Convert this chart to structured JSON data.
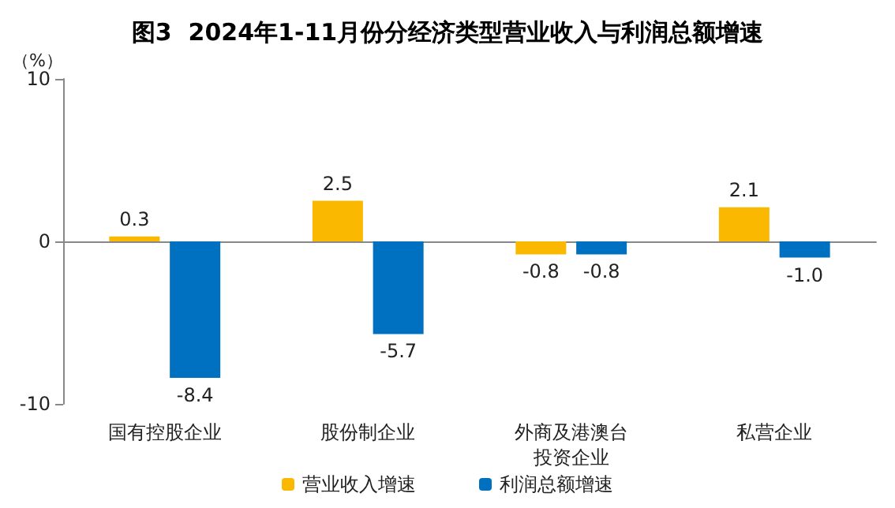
{
  "chart_data": {
    "type": "bar",
    "title": "图3  2024年1-11月份分经济类型营业收入与利润总额增速",
    "ylabel": "（%）",
    "categories": [
      "国有控股企业",
      "股份制企业",
      "外商及港澳台投资企业",
      "私营企业"
    ],
    "series": [
      {
        "name": "营业收入增速",
        "color": "#fbb800",
        "values": [
          0.3,
          2.5,
          -0.8,
          2.1
        ],
        "value_labels": [
          "0.3",
          "2.5",
          "-0.8",
          "2.1"
        ]
      },
      {
        "name": "利润总额增速",
        "color": "#0070c0",
        "values": [
          -8.4,
          -5.7,
          -0.8,
          -1.0
        ],
        "value_labels": [
          "-8.4",
          "-5.7",
          "-0.8",
          "-1.0"
        ]
      }
    ],
    "ylim": [
      -10,
      10
    ],
    "yticks": [
      -10,
      0,
      10
    ],
    "legend": "bottom"
  }
}
